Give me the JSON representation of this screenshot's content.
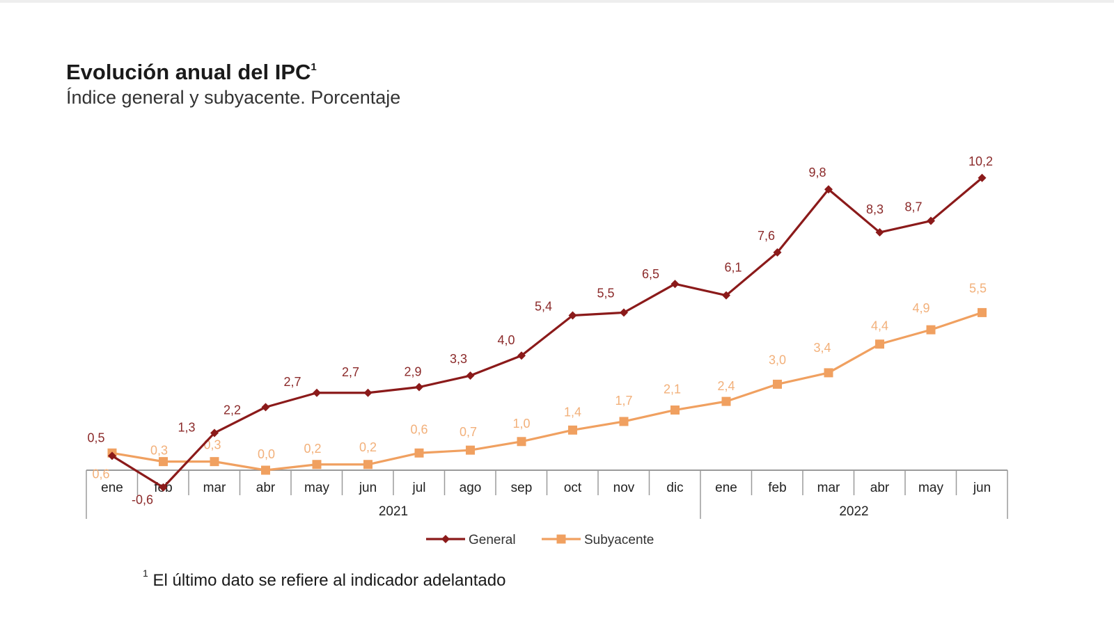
{
  "title": "Evolución anual del IPC",
  "title_sup": "1",
  "subtitle": "Índice general y subyacente. Porcentaje",
  "footnote": {
    "marker": "1",
    "text": "El último dato se refiere al indicador adelantado"
  },
  "colors": {
    "general": "#8b1a1a",
    "subyacente": "#f0a060",
    "general_label": "#8b2a2a",
    "subyacente_label": "#f2b07a",
    "axis": "#9a9a9a"
  },
  "chart_data": {
    "type": "line",
    "categories": [
      "ene",
      "feb",
      "mar",
      "abr",
      "may",
      "jun",
      "jul",
      "ago",
      "sep",
      "oct",
      "nov",
      "dic",
      "ene",
      "feb",
      "mar",
      "abr",
      "may",
      "jun"
    ],
    "year_groups": [
      {
        "label": "2021",
        "start": 0,
        "end": 11
      },
      {
        "label": "2022",
        "start": 12,
        "end": 17
      }
    ],
    "series": [
      {
        "name": "General",
        "marker": "diamond",
        "values": [
          0.5,
          -0.6,
          1.3,
          2.2,
          2.7,
          2.7,
          2.9,
          3.3,
          4.0,
          5.4,
          5.5,
          6.5,
          6.1,
          7.6,
          9.8,
          8.3,
          8.7,
          10.2
        ],
        "labels": [
          "0,5",
          "-0,6",
          "1,3",
          "2,2",
          "2,7",
          "2,7",
          "2,9",
          "3,3",
          "4,0",
          "5,4",
          "5,5",
          "6,5",
          "6,1",
          "7,6",
          "9,8",
          "8,3",
          "8,7",
          "10,2"
        ]
      },
      {
        "name": "Subyacente",
        "marker": "square",
        "values": [
          0.6,
          0.3,
          0.3,
          0.0,
          0.2,
          0.2,
          0.6,
          0.7,
          1.0,
          1.4,
          1.7,
          2.1,
          2.4,
          3.0,
          3.4,
          4.4,
          4.9,
          5.5
        ],
        "labels": [
          "0,6",
          "0,3",
          "0,3",
          "0,0",
          "0,2",
          "0,2",
          "0,6",
          "0,7",
          "1,0",
          "1,4",
          "1,7",
          "2,1",
          "2,4",
          "3,0",
          "3,4",
          "4,4",
          "4,9",
          "5,5"
        ]
      }
    ],
    "ylim": [
      0,
      10.5
    ],
    "legend": "bottom-center",
    "grid": false
  }
}
